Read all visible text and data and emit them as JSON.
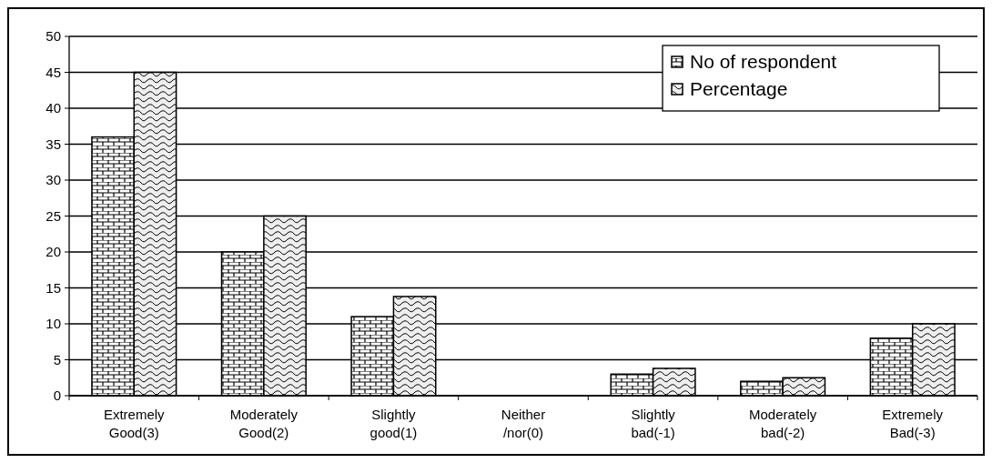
{
  "chart_data": {
    "type": "bar",
    "categories": [
      "Extremely Good(3)",
      "Moderately Good(2)",
      "Slightly good(1)",
      "Neither /nor(0)",
      "Slightly bad(-1)",
      "Moderately bad(-2)",
      "Extremely Bad(-3)"
    ],
    "series": [
      {
        "name": "No of respondent",
        "color": "#000000",
        "values": [
          36,
          20,
          11,
          0,
          3,
          2,
          8
        ]
      },
      {
        "name": "Percentage",
        "color": "#000000",
        "values": [
          45,
          25,
          13.8,
          0,
          3.8,
          2.5,
          10
        ]
      }
    ],
    "ylim": [
      0,
      50
    ],
    "yticks": [
      0,
      5,
      10,
      15,
      20,
      25,
      30,
      35,
      40,
      45,
      50
    ],
    "grid": "y",
    "legend": "top right"
  }
}
